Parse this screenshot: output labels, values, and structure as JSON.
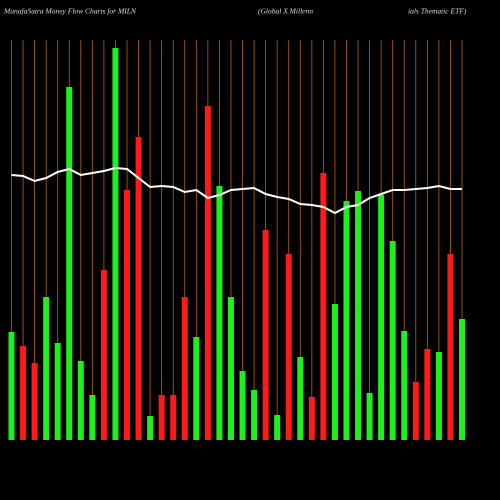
{
  "chart_data": {
    "type": "bar",
    "title": "MunafaSutra  Money Flow  Charts for MILN",
    "subtitle": "(Global X  Millenn",
    "subtitle_end": "ials Thematic ETF)",
    "ylim": [
      0,
      400
    ],
    "y2lim": [
      0,
      400
    ],
    "series": [
      {
        "values": [
          108,
          94,
          77,
          143,
          97,
          353,
          79,
          45,
          170,
          392,
          250,
          303,
          24,
          45,
          45,
          143,
          103,
          334,
          254,
          143,
          69,
          50,
          210,
          25,
          186,
          83,
          43,
          267,
          136,
          239,
          249,
          47,
          245,
          199,
          109,
          58,
          91,
          88,
          186,
          121
        ],
        "colors": [
          "#1ef01e",
          "#ff1a1a",
          "#ff1a1a",
          "#1ef01e",
          "#1ef01e",
          "#1ef01e",
          "#1ef01e",
          "#1ef01e",
          "#ff1a1a",
          "#1ef01e",
          "#ff1a1a",
          "#ff1a1a",
          "#1ef01e",
          "#ff1a1a",
          "#ff1a1a",
          "#ff1a1a",
          "#1ef01e",
          "#ff1a1a",
          "#1ef01e",
          "#1ef01e",
          "#1ef01e",
          "#1ef01e",
          "#ff1a1a",
          "#1ef01e",
          "#ff1a1a",
          "#1ef01e",
          "#ff1a1a",
          "#ff1a1a",
          "#1ef01e",
          "#1ef01e",
          "#1ef01e",
          "#1ef01e",
          "#1ef01e",
          "#1ef01e",
          "#1ef01e",
          "#ff1a1a",
          "#ff1a1a",
          "#1ef01e",
          "#ff1a1a",
          "#1ef01e"
        ]
      },
      {
        "type": "line",
        "axis": "y2",
        "color": "#ffffff",
        "values": [
          265,
          264,
          259,
          262,
          268,
          271,
          265,
          267,
          269,
          272,
          271,
          262,
          253,
          254,
          253,
          248,
          250,
          242,
          245,
          250,
          251,
          252,
          246,
          243,
          241,
          236,
          235,
          233,
          227,
          233,
          235,
          242,
          246,
          250,
          250,
          251,
          252,
          254,
          251,
          251
        ]
      }
    ]
  }
}
